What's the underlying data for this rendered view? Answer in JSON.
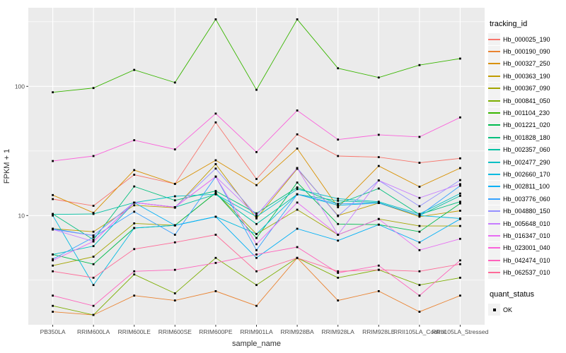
{
  "figure": {
    "background": "#FFFFFF",
    "panel_bg": "#EBEBEB",
    "grid_color": "#FFFFFF",
    "legend_key_bg": "#F2F2F2",
    "point_color": "#000000",
    "tick_text_color": "#4D4D4D"
  },
  "chart_data": {
    "type": "line",
    "title": "",
    "xlabel": "sample_name",
    "ylabel": "FPKM + 1",
    "y_scale": "log10",
    "ylim": [
      1.4,
      410
    ],
    "y_ticks": [
      10,
      100
    ],
    "y_tick_labels": [
      "10",
      "100"
    ],
    "y_minor_ticks": [
      3.162,
      31.62,
      316.2
    ],
    "grid": true,
    "legend_position": "right",
    "categories": [
      "PB350LA",
      "RRIM600LA",
      "RRIM600LE",
      "RRIM600SE",
      "RRIM600PE",
      "RRIM901LA",
      "RRIM928BA",
      "RRIM928LA",
      "RRIM928LE",
      "RRII105LA_Control",
      "RRII105LA_Stressed"
    ],
    "series": [
      {
        "name": "Hb_000025_190",
        "color": "#F8766D",
        "values": [
          13.4,
          11.9,
          20.7,
          17.6,
          52.6,
          19.2,
          42.5,
          28.9,
          28.3,
          25.6,
          27.7
        ]
      },
      {
        "name": "Hb_000190_090",
        "color": "#EA8331",
        "values": [
          1.8,
          1.7,
          2.4,
          2.2,
          2.6,
          2.0,
          4.7,
          2.2,
          2.6,
          1.8,
          2.4
        ]
      },
      {
        "name": "Hb_000327_250",
        "color": "#D89000",
        "values": [
          14.4,
          10.5,
          22.5,
          17.6,
          26.8,
          17.2,
          33.0,
          11.6,
          24.2,
          16.7,
          23.3
        ]
      },
      {
        "name": "Hb_000363_190",
        "color": "#C09B00",
        "values": [
          7.9,
          7.5,
          12.0,
          11.5,
          25.0,
          9.5,
          23.0,
          10.0,
          12.5,
          9.8,
          10.9
        ]
      },
      {
        "name": "Hb_000367_090",
        "color": "#A3A500",
        "values": [
          4.1,
          4.8,
          8.7,
          8.4,
          15.0,
          7.2,
          11.1,
          7.1,
          9.4,
          8.3,
          8.3
        ]
      },
      {
        "name": "Hb_000841_050",
        "color": "#7CAE00",
        "values": [
          2.0,
          1.7,
          3.5,
          2.5,
          4.7,
          2.9,
          4.7,
          3.3,
          3.8,
          2.9,
          3.3
        ]
      },
      {
        "name": "Hb_001104_230",
        "color": "#39B600",
        "values": [
          90,
          97,
          134,
          107,
          330,
          94,
          330,
          138,
          117,
          146,
          164
        ]
      },
      {
        "name": "Hb_001221_020",
        "color": "#00BB4E",
        "values": [
          5.0,
          4.2,
          8.0,
          8.4,
          15.0,
          6.7,
          18.0,
          8.6,
          8.5,
          7.5,
          12.4
        ]
      },
      {
        "name": "Hb_001828_180",
        "color": "#00BF7D",
        "values": [
          10.3,
          6.5,
          16.8,
          13.1,
          15.5,
          10.4,
          16.5,
          12.3,
          16.2,
          10.2,
          12.8
        ]
      },
      {
        "name": "Hb_002357_060",
        "color": "#00C1A3",
        "values": [
          10.2,
          10.3,
          12.6,
          11.6,
          14.6,
          8.6,
          14.6,
          13.0,
          12.6,
          10.0,
          14.2
        ]
      },
      {
        "name": "Hb_002477_290",
        "color": "#00BFC4",
        "values": [
          5.0,
          5.8,
          12.6,
          14.1,
          14.6,
          9.8,
          16.0,
          13.5,
          12.8,
          10.3,
          14.8
        ]
      },
      {
        "name": "Hb_002660_170",
        "color": "#00BAE0",
        "values": [
          10.0,
          2.9,
          8.0,
          8.4,
          9.8,
          7.2,
          14.6,
          12.0,
          12.5,
          10.0,
          9.5
        ]
      },
      {
        "name": "Hb_002811_100",
        "color": "#00B0F6",
        "values": [
          7.9,
          7.0,
          12.6,
          8.4,
          9.8,
          4.7,
          7.9,
          6.4,
          8.5,
          6.2,
          9.4
        ]
      },
      {
        "name": "Hb_003776_060",
        "color": "#35A2FF",
        "values": [
          4.6,
          6.8,
          10.7,
          7.1,
          20.0,
          5.4,
          14.6,
          12.3,
          12.5,
          10.0,
          17.0
        ]
      },
      {
        "name": "Hb_004880_150",
        "color": "#9590FF",
        "values": [
          7.8,
          7.0,
          12.6,
          11.6,
          23.1,
          10.0,
          23.3,
          9.9,
          18.7,
          11.8,
          18.8
        ]
      },
      {
        "name": "Hb_005648_010",
        "color": "#C77CFF",
        "values": [
          7.8,
          6.3,
          12.6,
          11.6,
          20.0,
          10.0,
          23.3,
          7.1,
          18.7,
          13.7,
          17.5
        ]
      },
      {
        "name": "Hb_016347_010",
        "color": "#E76BF3",
        "values": [
          4.5,
          6.3,
          12.6,
          11.6,
          20.0,
          6.0,
          12.6,
          7.1,
          9.4,
          5.4,
          6.6
        ]
      },
      {
        "name": "Hb_023001_040",
        "color": "#FA62DB",
        "values": [
          26.4,
          28.9,
          38.3,
          32.5,
          61.5,
          31.0,
          65.0,
          38.7,
          42.2,
          40.6,
          57.5
        ]
      },
      {
        "name": "Hb_042474_010",
        "color": "#FF62BC",
        "values": [
          2.4,
          2.0,
          3.7,
          3.8,
          4.3,
          5.0,
          5.7,
          3.6,
          4.1,
          2.4,
          4.5
        ]
      },
      {
        "name": "Hb_062537_010",
        "color": "#FF6A98",
        "values": [
          3.7,
          3.3,
          5.5,
          6.2,
          7.1,
          3.7,
          4.7,
          3.7,
          3.8,
          3.7,
          4.2
        ]
      }
    ],
    "legend": {
      "series_title": "tracking_id",
      "shape_title": "quant_status",
      "shape_items": [
        {
          "label": "OK"
        }
      ]
    }
  }
}
